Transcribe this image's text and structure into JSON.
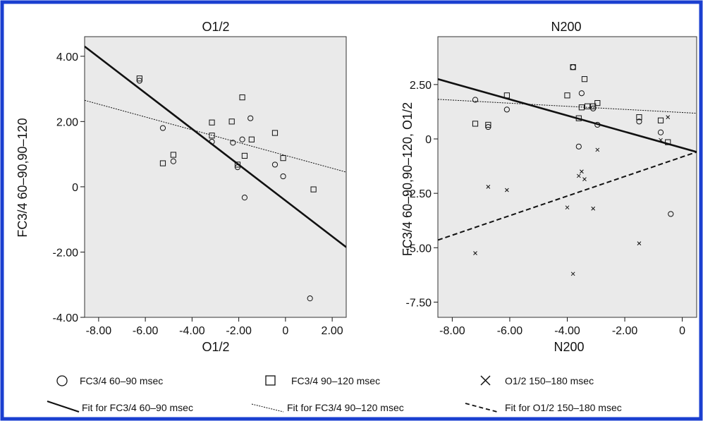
{
  "colors": {
    "border": "#1a3fd0",
    "plot_bg": "#eaeaea",
    "ink": "#111111"
  },
  "chart_data": [
    {
      "type": "scatter",
      "title": "O1/2",
      "xlabel": "O1/2",
      "ylabel": "FC3/4 60–90,90–120",
      "xlim": [
        -8.6,
        2.6
      ],
      "ylim": [
        -4.0,
        4.6
      ],
      "xticks": [
        {
          "v": -8,
          "label": "-8.00"
        },
        {
          "v": -6,
          "label": "-6.00"
        },
        {
          "v": -4,
          "label": "-4.00"
        },
        {
          "v": -2,
          "label": "-2.00"
        },
        {
          "v": 0,
          "label": "0"
        },
        {
          "v": 2,
          "label": "2.00"
        }
      ],
      "yticks": [
        {
          "v": 4,
          "label": "4.00"
        },
        {
          "v": 2,
          "label": "2.00"
        },
        {
          "v": 0,
          "label": "0"
        },
        {
          "v": -2,
          "label": "-2.00"
        },
        {
          "v": -4,
          "label": "-4.00"
        }
      ],
      "grid": false,
      "series": [
        {
          "name": "FC3/4 60–90 msec",
          "marker": "circle",
          "points": [
            [
              -6.25,
              3.25
            ],
            [
              -5.25,
              1.8
            ],
            [
              -4.8,
              0.78
            ],
            [
              -3.15,
              1.38
            ],
            [
              -2.25,
              1.35
            ],
            [
              -2.05,
              0.6
            ],
            [
              -1.85,
              1.45
            ],
            [
              -1.75,
              -0.33
            ],
            [
              -1.5,
              2.1
            ],
            [
              -0.45,
              0.68
            ],
            [
              -0.1,
              0.32
            ],
            [
              1.05,
              -3.42
            ]
          ]
        },
        {
          "name": "FC3/4 90–120 msec",
          "marker": "square",
          "points": [
            [
              -6.25,
              3.32
            ],
            [
              -5.25,
              0.72
            ],
            [
              -4.8,
              0.98
            ],
            [
              -3.15,
              1.97
            ],
            [
              -3.15,
              1.57
            ],
            [
              -2.3,
              2.0
            ],
            [
              -2.05,
              0.68
            ],
            [
              -1.85,
              2.74
            ],
            [
              -1.75,
              0.95
            ],
            [
              -1.45,
              1.45
            ],
            [
              -0.45,
              1.65
            ],
            [
              -0.1,
              0.88
            ],
            [
              1.2,
              -0.08
            ]
          ]
        }
      ],
      "fits": [
        {
          "name": "Fit for FC3/4 60–90 msec",
          "style": "solid",
          "x": [
            -8.6,
            2.6
          ],
          "y": [
            4.3,
            -1.85
          ]
        },
        {
          "name": "Fit for FC3/4 90–120 msec",
          "style": "dotted",
          "x": [
            -8.6,
            2.6
          ],
          "y": [
            2.65,
            0.45
          ]
        }
      ]
    },
    {
      "type": "scatter",
      "title": "N200",
      "xlabel": "N200",
      "ylabel": "FC3/4 60–90,90–120, O1/2",
      "xlim": [
        -8.5,
        0.5
      ],
      "ylim": [
        -8.2,
        4.7
      ],
      "xticks": [
        {
          "v": -8,
          "label": "-8.00"
        },
        {
          "v": -6,
          "label": "-6.00"
        },
        {
          "v": -4,
          "label": "-4.00"
        },
        {
          "v": -2,
          "label": "-2.00"
        },
        {
          "v": 0,
          "label": "0"
        }
      ],
      "yticks": [
        {
          "v": 2.5,
          "label": "2.50"
        },
        {
          "v": 0,
          "label": "0"
        },
        {
          "v": -2.5,
          "label": "-2.50"
        },
        {
          "v": -5,
          "label": "-5.00"
        },
        {
          "v": -7.5,
          "label": "-7.50"
        }
      ],
      "grid": false,
      "series": [
        {
          "name": "FC3/4 60–90 msec",
          "marker": "circle",
          "points": [
            [
              -7.2,
              1.8
            ],
            [
              -6.75,
              0.55
            ],
            [
              -6.1,
              1.35
            ],
            [
              -3.8,
              3.3
            ],
            [
              -3.6,
              -0.35
            ],
            [
              -3.5,
              2.1
            ],
            [
              -3.1,
              1.4
            ],
            [
              -2.95,
              0.65
            ],
            [
              -1.5,
              0.8
            ],
            [
              -0.75,
              0.3
            ],
            [
              -0.4,
              -3.45
            ]
          ]
        },
        {
          "name": "FC3/4 90–120 msec",
          "marker": "square",
          "points": [
            [
              -7.2,
              0.7
            ],
            [
              -6.75,
              0.65
            ],
            [
              -6.1,
              2.0
            ],
            [
              -4.0,
              2.0
            ],
            [
              -3.8,
              3.3
            ],
            [
              -3.6,
              0.95
            ],
            [
              -3.5,
              1.45
            ],
            [
              -3.4,
              2.75
            ],
            [
              -3.3,
              1.5
            ],
            [
              -3.1,
              1.5
            ],
            [
              -2.95,
              1.65
            ],
            [
              -1.5,
              1.0
            ],
            [
              -0.75,
              0.85
            ],
            [
              -0.5,
              -0.15
            ]
          ]
        },
        {
          "name": "O1/2 150–180 msec",
          "marker": "cross",
          "points": [
            [
              -7.2,
              -5.25
            ],
            [
              -6.75,
              -2.2
            ],
            [
              -6.1,
              -2.35
            ],
            [
              -4.0,
              -3.15
            ],
            [
              -3.8,
              -6.2
            ],
            [
              -3.6,
              -1.7
            ],
            [
              -3.5,
              -1.5
            ],
            [
              -3.4,
              -1.85
            ],
            [
              -3.1,
              -3.2
            ],
            [
              -2.95,
              -0.5
            ],
            [
              -1.5,
              -4.8
            ],
            [
              -0.75,
              -0.05
            ],
            [
              -0.5,
              1.0
            ]
          ]
        }
      ],
      "fits": [
        {
          "name": "Fit for FC3/4 60–90 msec",
          "style": "solid",
          "x": [
            -8.5,
            0.5
          ],
          "y": [
            2.75,
            -0.6
          ]
        },
        {
          "name": "Fit for FC3/4 90–120 msec",
          "style": "dotted",
          "x": [
            -8.5,
            0.5
          ],
          "y": [
            1.82,
            1.18
          ]
        },
        {
          "name": "Fit for O1/2 150–180 msec",
          "style": "dashed",
          "x": [
            -8.5,
            0.5
          ],
          "y": [
            -4.65,
            -0.6
          ]
        }
      ]
    }
  ],
  "legend": {
    "markers": [
      {
        "marker": "circle",
        "label": "FC3/4 60–90 msec"
      },
      {
        "marker": "square",
        "label": "FC3/4 90–120 msec"
      },
      {
        "marker": "cross",
        "label": "O1/2 150–180 msec"
      }
    ],
    "lines": [
      {
        "style": "solid",
        "label": "Fit for FC3/4 60–90 msec"
      },
      {
        "style": "dotted",
        "label": "Fit for FC3/4 90–120 msec"
      },
      {
        "style": "dashed",
        "label": "Fit for O1/2 150–180 msec"
      }
    ]
  }
}
